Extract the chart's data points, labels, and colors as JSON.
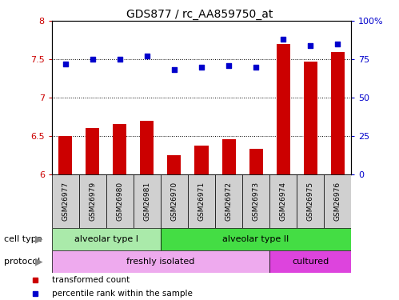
{
  "title": "GDS877 / rc_AA859750_at",
  "samples": [
    "GSM26977",
    "GSM26979",
    "GSM26980",
    "GSM26981",
    "GSM26970",
    "GSM26971",
    "GSM26972",
    "GSM26973",
    "GSM26974",
    "GSM26975",
    "GSM26976"
  ],
  "bar_values": [
    6.5,
    6.6,
    6.65,
    6.7,
    6.25,
    6.37,
    6.45,
    6.33,
    7.7,
    7.47,
    7.6
  ],
  "dot_values": [
    72,
    75,
    75,
    77,
    68,
    70,
    71,
    70,
    88,
    84,
    85
  ],
  "ylim_left": [
    6,
    8
  ],
  "ylim_right": [
    0,
    100
  ],
  "yticks_left": [
    6,
    6.5,
    7,
    7.5,
    8
  ],
  "yticks_right": [
    0,
    25,
    50,
    75,
    100
  ],
  "ytick_labels_right": [
    "0",
    "25",
    "50",
    "75",
    "100%"
  ],
  "bar_color": "#cc0000",
  "dot_color": "#0000cc",
  "cell_type_groups": [
    {
      "label": "alveolar type I",
      "start": 0,
      "end": 4,
      "color": "#aaeaaa"
    },
    {
      "label": "alveolar type II",
      "start": 4,
      "end": 11,
      "color": "#44dd44"
    }
  ],
  "protocol_groups": [
    {
      "label": "freshly isolated",
      "start": 0,
      "end": 8,
      "color": "#eeaaee"
    },
    {
      "label": "cultured",
      "start": 8,
      "end": 11,
      "color": "#dd44dd"
    }
  ],
  "legend_items": [
    {
      "label": "transformed count",
      "color": "#cc0000"
    },
    {
      "label": "percentile rank within the sample",
      "color": "#0000cc"
    }
  ],
  "label_cell_type": "cell type",
  "label_protocol": "protocol",
  "sample_box_color": "#d0d0d0",
  "background_color": "#ffffff"
}
